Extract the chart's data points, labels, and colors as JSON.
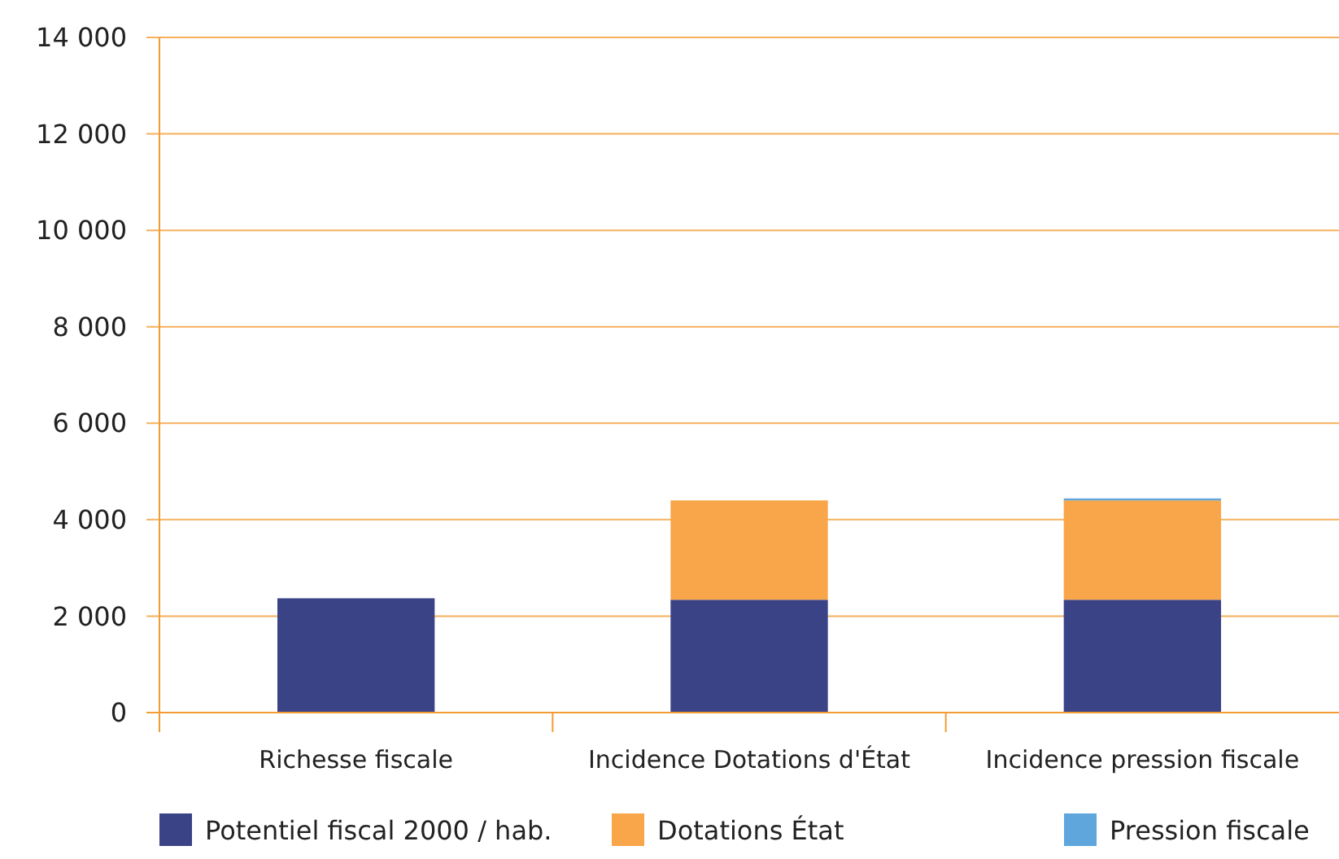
{
  "chart_data": {
    "type": "bar",
    "stacked": true,
    "categories": [
      "Richesse fiscale",
      "Incidence Dotations d'État",
      "Incidence pression fiscale"
    ],
    "series": [
      {
        "name": "Potentiel fiscal 2000 / hab.",
        "color": "#3b4387",
        "values": [
          2370,
          2340,
          2340
        ]
      },
      {
        "name": "Dotations État",
        "color": "#f9a54a",
        "values": [
          0,
          2060,
          2060
        ]
      },
      {
        "name": "Pression fiscale",
        "color": "#5ea6dc",
        "values": [
          0,
          0,
          40
        ]
      }
    ],
    "ylim": [
      0,
      14000
    ],
    "yticks": [
      {
        "value": 0,
        "label": "0"
      },
      {
        "value": 2000,
        "label": "2 000"
      },
      {
        "value": 4000,
        "label": "4 000"
      },
      {
        "value": 6000,
        "label": "6 000"
      },
      {
        "value": 8000,
        "label": "8 000"
      },
      {
        "value": 10000,
        "label": "10 000"
      },
      {
        "value": 12000,
        "label": "12 000"
      },
      {
        "value": 14000,
        "label": "14 000"
      }
    ],
    "grid": "y",
    "legend": "bottom"
  }
}
